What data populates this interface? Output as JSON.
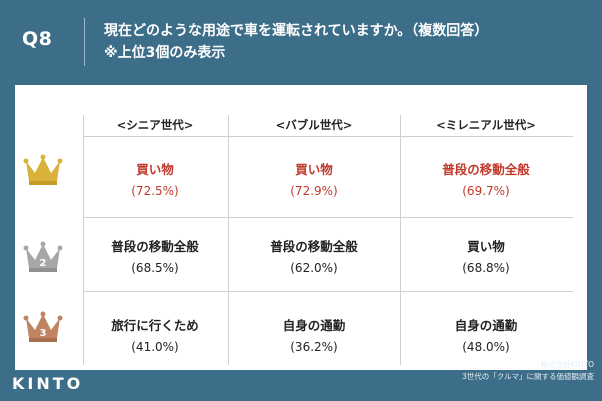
{
  "question": {
    "number": "Q8",
    "title_line1": "現在どのような用途で車を運転されていますか。（複数回答）",
    "title_line2": "※上位3個のみ表示"
  },
  "columns": [
    "<シニア世代>",
    "<バブル世代>",
    "<ミレニアル世代>"
  ],
  "rows": [
    {
      "rank": "1",
      "cells": [
        {
          "name": "買い物",
          "pct": "(72.5%)"
        },
        {
          "name": "買い物",
          "pct": "(72.9%)"
        },
        {
          "name": "普段の移動全般",
          "pct": "(69.7%)"
        }
      ]
    },
    {
      "rank": "2",
      "cells": [
        {
          "name": "普段の移動全般",
          "pct": "(68.5%)"
        },
        {
          "name": "普段の移動全般",
          "pct": "(62.0%)"
        },
        {
          "name": "買い物",
          "pct": "(68.8%)"
        }
      ]
    },
    {
      "rank": "3",
      "cells": [
        {
          "name": "旅行に行くため",
          "pct": "(41.0%)"
        },
        {
          "name": "自身の通勤",
          "pct": "(36.2%)"
        },
        {
          "name": "自身の通勤",
          "pct": "(48.0%)"
        }
      ]
    }
  ],
  "crowns": [
    {
      "icon": "gold-crown-icon",
      "color": "#d9b23a"
    },
    {
      "icon": "silver-crown-icon",
      "color": "#a7a7a7"
    },
    {
      "icon": "bronze-crown-icon",
      "color": "#c08462"
    }
  ],
  "colors": {
    "background": "#3d6e89",
    "highlight": "#c0392b"
  },
  "footer": {
    "line1": "株式会社KINTO",
    "line2": "3世代の「クルマ」に関する価値観調査"
  },
  "logo": "KINTO"
}
